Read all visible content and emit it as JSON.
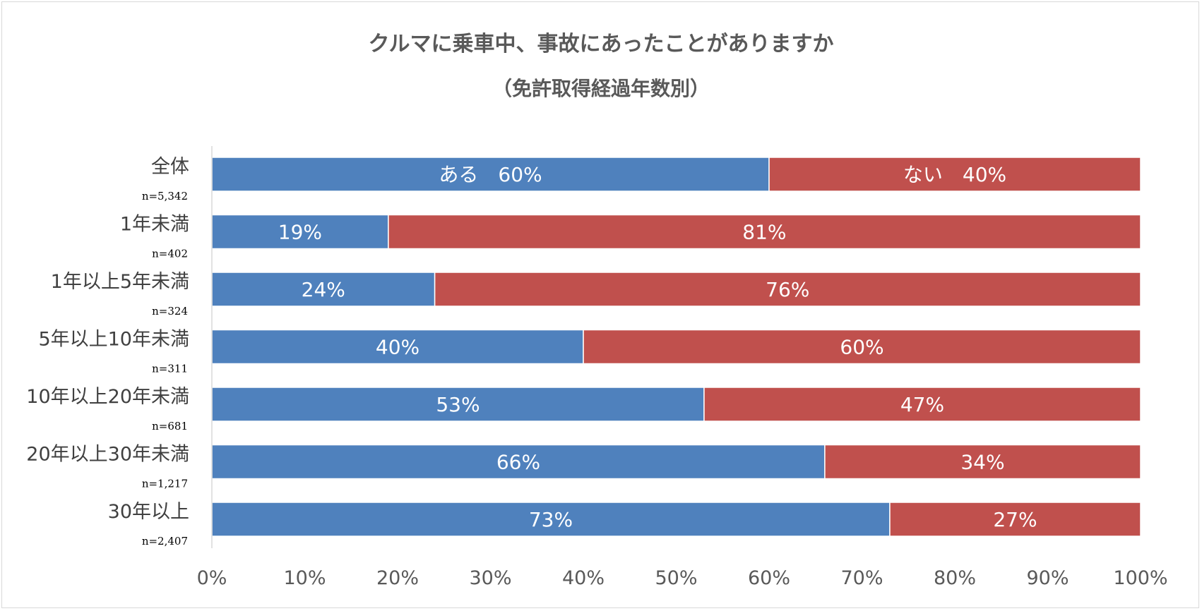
{
  "chart_data": {
    "type": "bar",
    "orientation": "horizontal",
    "stacked": true,
    "percent": true,
    "title": "クルマに乗車中、事故にあったことがありますか",
    "subtitle": "（免許取得経過年数別）",
    "xlabel": "",
    "ylabel": "",
    "xlim": [
      0,
      100
    ],
    "x_ticks": [
      "0%",
      "10%",
      "20%",
      "30%",
      "40%",
      "50%",
      "60%",
      "70%",
      "80%",
      "90%",
      "100%"
    ],
    "grid": false,
    "legend": "none",
    "categories": [
      "全体",
      "1年未満",
      "1年以上5年未満",
      "5年以上10年未満",
      "10年以上20年未満",
      "20年以上30年未満",
      "30年以上"
    ],
    "sample_sizes": [
      "n=5,342",
      "n=402",
      "n=324",
      "n=311",
      "n=681",
      "n=1,217",
      "n=2,407"
    ],
    "series": [
      {
        "name": "ある",
        "color": "#4f81bd",
        "values": [
          60,
          19,
          24,
          40,
          53,
          66,
          73
        ],
        "labels": [
          "ある　60%",
          "19%",
          "24%",
          "40%",
          "53%",
          "66%",
          "73%"
        ]
      },
      {
        "name": "ない",
        "color": "#c0504d",
        "values": [
          40,
          81,
          76,
          60,
          47,
          34,
          27
        ],
        "labels": [
          "ない　40%",
          "81%",
          "76%",
          "60%",
          "47%",
          "34%",
          "27%"
        ]
      }
    ]
  }
}
